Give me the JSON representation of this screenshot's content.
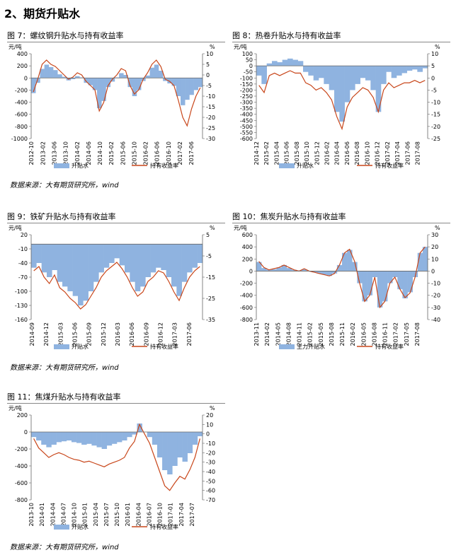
{
  "section_title": "2、期货升贴水",
  "source_text": "数据来源：大有期货研究所，wind",
  "colors": {
    "bar": "#8fb3e0",
    "line": "#c8461a"
  },
  "chart_data": [
    {
      "id": "fig7",
      "type": "bar",
      "title": "图 7：螺纹钢升贴水与持有收益率",
      "ylabel_left": "元/吨",
      "ylabel_right": "%",
      "ylim_left": [
        -1000,
        400
      ],
      "yticks_left": [
        400,
        200,
        0,
        -200,
        -400,
        -600,
        -800,
        -1000
      ],
      "ylim_right": [
        -30,
        10
      ],
      "yticks_right": [
        10,
        5,
        0,
        -5,
        -10,
        -15,
        -20,
        -25,
        -30
      ],
      "x_ticks": [
        "2012-10",
        "2013-02",
        "2013-06",
        "2013-10",
        "2014-02",
        "2014-06",
        "2014-10",
        "2015-02",
        "2015-06",
        "2015-10",
        "2016-02",
        "2016-06",
        "2016-10",
        "2017-02",
        "2017-06"
      ],
      "legend": [
        "升贴水",
        "持有收益率"
      ],
      "series": [
        {
          "name": "升贴水",
          "axis": "left",
          "values": [
            -250,
            -80,
            150,
            220,
            180,
            130,
            60,
            20,
            -40,
            -20,
            30,
            10,
            -80,
            -120,
            -200,
            -500,
            -380,
            -150,
            -60,
            10,
            80,
            50,
            -150,
            -300,
            -200,
            -50,
            40,
            170,
            220,
            120,
            -50,
            -90,
            -130,
            -300,
            -450,
            -360,
            -280,
            -200,
            -150
          ]
        },
        {
          "name": "持有收益率",
          "axis": "right",
          "values": [
            -8,
            -2,
            5,
            7,
            5,
            4,
            2,
            0,
            -2,
            -1,
            1,
            0,
            -3,
            -5,
            -7,
            -17,
            -13,
            -5,
            -2,
            0,
            3,
            2,
            -5,
            -9,
            -7,
            -2,
            1,
            5,
            7,
            4,
            -2,
            -3,
            -5,
            -12,
            -20,
            -24,
            -16,
            -10,
            -6
          ]
        }
      ]
    },
    {
      "id": "fig8",
      "type": "bar",
      "title": "图 8：热卷升贴水与持有收益率",
      "ylabel_left": "元/吨",
      "ylabel_right": "%",
      "ylim_left": [
        -600,
        100
      ],
      "yticks_left": [
        100,
        50,
        0,
        -50,
        -100,
        -150,
        -200,
        -250,
        -300,
        -350,
        -400,
        -450,
        -500,
        -550,
        -600
      ],
      "ylim_right": [
        -25,
        10
      ],
      "yticks_right": [
        10,
        5,
        0,
        -5,
        -10,
        -15,
        -20,
        -25
      ],
      "x_ticks": [
        "2014-12",
        "2015-02",
        "2015-04",
        "2015-06",
        "2015-08",
        "2015-10",
        "2015-12",
        "2016-02",
        "2016-04",
        "2016-06",
        "2016-08",
        "2016-10",
        "2016-12",
        "2017-02",
        "2017-04",
        "2017-06",
        "2017-08"
      ],
      "legend": [
        "升贴水",
        "持有收益率"
      ],
      "series": [
        {
          "name": "升贴水",
          "axis": "left",
          "values": [
            -80,
            -150,
            20,
            40,
            30,
            50,
            60,
            50,
            40,
            -50,
            -80,
            -120,
            -100,
            -150,
            -200,
            -380,
            -460,
            -300,
            -200,
            -150,
            -100,
            -120,
            -200,
            -380,
            -150,
            -50,
            -100,
            -80,
            -60,
            -40,
            -30,
            -50,
            -20
          ]
        },
        {
          "name": "持有收益率",
          "axis": "right",
          "values": [
            -3,
            -6,
            1,
            2,
            1,
            2,
            3,
            2,
            2,
            -2,
            -3,
            -5,
            -4,
            -6,
            -9,
            -16,
            -21,
            -12,
            -8,
            -6,
            -4,
            -5,
            -8,
            -14,
            -5,
            -2,
            -4,
            -3,
            -2,
            -2,
            -1,
            -2,
            -1
          ]
        }
      ]
    },
    {
      "id": "fig9",
      "type": "bar",
      "title": "图 9：铁矿升贴水与持有收益率",
      "ylabel_left": "元/吨",
      "ylabel_right": "%",
      "ylim_left": [
        -160,
        20
      ],
      "yticks_left": [
        20,
        -10,
        -40,
        -70,
        -100,
        -130,
        -160
      ],
      "ylim_right": [
        -35,
        5
      ],
      "yticks_right": [
        5,
        -5,
        -15,
        -25,
        -35
      ],
      "x_ticks": [
        "2014-09",
        "2014-12",
        "2015-03",
        "2015-06",
        "2015-09",
        "2015-12",
        "2016-03",
        "2016-06",
        "2016-09",
        "2016-12",
        "2017-03",
        "2017-06"
      ],
      "legend": [
        "升贴水",
        "持有收益率"
      ],
      "series": [
        {
          "name": "升贴水",
          "axis": "left",
          "values": [
            -50,
            -40,
            -60,
            -70,
            -55,
            -80,
            -90,
            -100,
            -110,
            -130,
            -120,
            -100,
            -80,
            -60,
            -50,
            -40,
            -30,
            -45,
            -60,
            -80,
            -100,
            -90,
            -70,
            -60,
            -50,
            -55,
            -70,
            -90,
            -110,
            -80,
            -60,
            -50,
            -40
          ]
        },
        {
          "name": "持有收益率",
          "axis": "right",
          "values": [
            -12,
            -10,
            -15,
            -18,
            -14,
            -20,
            -22,
            -25,
            -27,
            -30,
            -28,
            -24,
            -20,
            -15,
            -12,
            -10,
            -8,
            -11,
            -15,
            -20,
            -24,
            -22,
            -17,
            -15,
            -12,
            -13,
            -17,
            -22,
            -26,
            -20,
            -15,
            -12,
            -10
          ]
        }
      ]
    },
    {
      "id": "fig10",
      "type": "bar",
      "title": "图 10：焦炭升贴水与持有收益率",
      "ylabel_left": "元/吨",
      "ylabel_right": "%",
      "ylim_left": [
        -800,
        600
      ],
      "yticks_left": [
        600,
        400,
        200,
        0,
        -200,
        -400,
        -600,
        -800
      ],
      "ylim_right": [
        -40,
        30
      ],
      "yticks_right": [
        30,
        20,
        10,
        0,
        -10,
        -20,
        -30,
        -40
      ],
      "x_ticks": [
        "2013-11",
        "2014-02",
        "2014-05",
        "2014-08",
        "2014-11",
        "2015-02",
        "2015-05",
        "2015-08",
        "2015-11",
        "2016-02",
        "2016-05",
        "2016-08",
        "2016-11",
        "2017-02",
        "2017-05",
        "2017-08"
      ],
      "legend": [
        "主力升贴水",
        "持有收益率"
      ],
      "series": [
        {
          "name": "主力升贴水",
          "axis": "left",
          "values": [
            150,
            50,
            20,
            30,
            60,
            100,
            50,
            20,
            10,
            30,
            0,
            -20,
            -40,
            -60,
            -80,
            -40,
            100,
            300,
            350,
            150,
            -200,
            -500,
            -400,
            -100,
            -600,
            -500,
            -200,
            -100,
            -300,
            -450,
            -350,
            -100,
            300,
            400
          ]
        },
        {
          "name": "持有收益率",
          "axis": "right",
          "values": [
            8,
            3,
            1,
            2,
            3,
            5,
            3,
            1,
            0,
            2,
            0,
            -1,
            -2,
            -3,
            -4,
            -2,
            5,
            15,
            18,
            8,
            -10,
            -25,
            -20,
            -5,
            -30,
            -25,
            -10,
            -5,
            -15,
            -22,
            -18,
            -5,
            15,
            20
          ]
        }
      ]
    },
    {
      "id": "fig11",
      "type": "bar",
      "title": "图 11：焦煤升贴水与持有收益率",
      "ylabel_left": "元/吨",
      "ylabel_right": "%",
      "ylim_left": [
        -800,
        200
      ],
      "yticks_left": [
        200,
        0,
        -200,
        -400,
        -600,
        -800
      ],
      "ylim_right": [
        -70,
        20
      ],
      "yticks_right": [
        20,
        10,
        0,
        -10,
        -20,
        -30,
        -40,
        -50,
        -60,
        -70
      ],
      "x_ticks": [
        "2013-10",
        "2014-01",
        "2014-04",
        "2014-07",
        "2014-10",
        "2015-01",
        "2015-04",
        "2015-07",
        "2015-10",
        "2016-01",
        "2016-04",
        "2016-07",
        "2016-10",
        "2017-01",
        "2017-04",
        "2017-07"
      ],
      "legend": [
        "升贴水",
        "持有收益率"
      ],
      "series": [
        {
          "name": "升贴水",
          "axis": "left",
          "values": [
            -60,
            -100,
            -150,
            -180,
            -150,
            -120,
            -110,
            -100,
            -120,
            -130,
            -150,
            -140,
            -160,
            -180,
            -200,
            -160,
            -140,
            -120,
            -100,
            -60,
            -30,
            100,
            0,
            -60,
            -150,
            -300,
            -450,
            -500,
            -400,
            -300,
            -350,
            -250,
            -150,
            -50
          ]
        },
        {
          "name": "持有收益率",
          "axis": "right",
          "values": [
            -5,
            -15,
            -20,
            -25,
            -22,
            -20,
            -22,
            -25,
            -27,
            -28,
            -30,
            -29,
            -31,
            -33,
            -35,
            -32,
            -30,
            -28,
            -25,
            -15,
            -8,
            10,
            0,
            -10,
            -25,
            -40,
            -55,
            -60,
            -52,
            -45,
            -48,
            -38,
            -25,
            -5
          ]
        }
      ]
    }
  ]
}
